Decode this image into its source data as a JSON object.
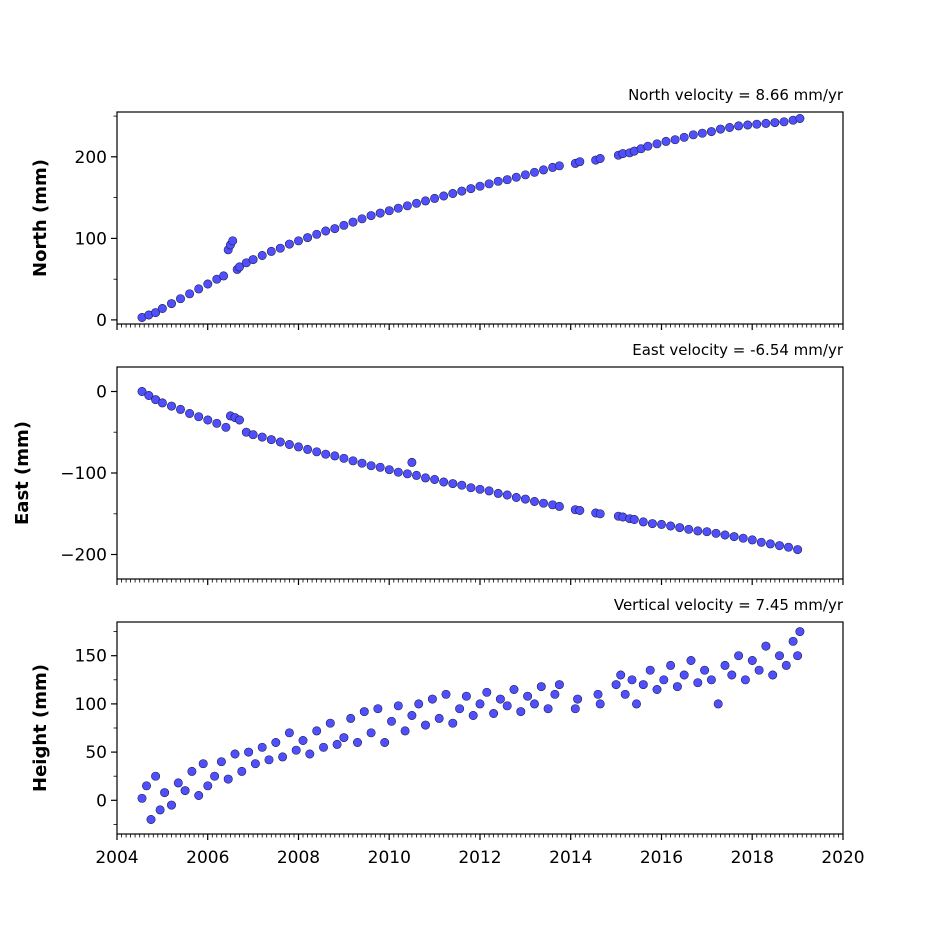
{
  "chart_data": [
    {
      "type": "scatter",
      "title": "North velocity = 8.66 mm/yr",
      "ylabel": "North (mm)",
      "xlabel": "",
      "xlim": [
        2004,
        2020
      ],
      "ylim": [
        -5,
        255
      ],
      "yticks": [
        0,
        100,
        200
      ],
      "marker_color": "#4f4fff",
      "series": [
        {
          "x": [
            2004.55,
            2004.7,
            2004.85,
            2005.0,
            2005.2,
            2005.4,
            2005.6,
            2005.8,
            2006.0,
            2006.2,
            2006.35,
            2006.45,
            2006.5,
            2006.55,
            2006.65,
            2006.7,
            2006.85,
            2007.0,
            2007.2,
            2007.4,
            2007.6,
            2007.8,
            2008.0,
            2008.2,
            2008.4,
            2008.6,
            2008.8,
            2009.0,
            2009.2,
            2009.4,
            2009.6,
            2009.8,
            2010.0,
            2010.2,
            2010.4,
            2010.6,
            2010.8,
            2011.0,
            2011.2,
            2011.4,
            2011.6,
            2011.8,
            2012.0,
            2012.2,
            2012.4,
            2012.6,
            2012.8,
            2013.0,
            2013.2,
            2013.4,
            2013.6,
            2013.75,
            2014.1,
            2014.2,
            2014.55,
            2014.65,
            2015.05,
            2015.15,
            2015.3,
            2015.4,
            2015.55,
            2015.7,
            2015.9,
            2016.1,
            2016.3,
            2016.5,
            2016.7,
            2016.9,
            2017.1,
            2017.3,
            2017.5,
            2017.7,
            2017.9,
            2018.1,
            2018.3,
            2018.5,
            2018.7,
            2018.9,
            2019.05
          ],
          "y": [
            3,
            6,
            9,
            14,
            20,
            26,
            32,
            38,
            44,
            50,
            54,
            86,
            92,
            97,
            62,
            65,
            70,
            74,
            79,
            84,
            88,
            93,
            97,
            101,
            105,
            109,
            112,
            116,
            120,
            124,
            128,
            131,
            134,
            137,
            140,
            143,
            146,
            149,
            152,
            155,
            158,
            161,
            164,
            167,
            170,
            172,
            175,
            178,
            181,
            184,
            187,
            189,
            192,
            194,
            196,
            198,
            202,
            204,
            205,
            207,
            210,
            213,
            216,
            219,
            221,
            224,
            227,
            229,
            231,
            234,
            236,
            238,
            239,
            240,
            241,
            242,
            243,
            245,
            247
          ]
        }
      ]
    },
    {
      "type": "scatter",
      "title": "East velocity = -6.54 mm/yr",
      "ylabel": "East (mm)",
      "xlabel": "",
      "xlim": [
        2004,
        2020
      ],
      "ylim": [
        -230,
        30
      ],
      "yticks": [
        0,
        -100,
        -200
      ],
      "marker_color": "#4f4fff",
      "series": [
        {
          "x": [
            2004.55,
            2004.7,
            2004.85,
            2005.0,
            2005.2,
            2005.4,
            2005.6,
            2005.8,
            2006.0,
            2006.2,
            2006.4,
            2006.5,
            2006.6,
            2006.7,
            2006.85,
            2007.0,
            2007.2,
            2007.4,
            2007.6,
            2007.8,
            2008.0,
            2008.2,
            2008.4,
            2008.6,
            2008.8,
            2009.0,
            2009.2,
            2009.4,
            2009.6,
            2009.8,
            2010.0,
            2010.2,
            2010.4,
            2010.5,
            2010.6,
            2010.8,
            2011.0,
            2011.2,
            2011.4,
            2011.6,
            2011.8,
            2012.0,
            2012.2,
            2012.4,
            2012.6,
            2012.8,
            2013.0,
            2013.2,
            2013.4,
            2013.6,
            2013.75,
            2014.1,
            2014.2,
            2014.55,
            2014.65,
            2015.05,
            2015.15,
            2015.3,
            2015.4,
            2015.6,
            2015.8,
            2016.0,
            2016.2,
            2016.4,
            2016.6,
            2016.8,
            2017.0,
            2017.2,
            2017.4,
            2017.6,
            2017.8,
            2018.0,
            2018.2,
            2018.4,
            2018.6,
            2018.8,
            2019.0
          ],
          "y": [
            0,
            -5,
            -10,
            -14,
            -18,
            -22,
            -27,
            -31,
            -35,
            -39,
            -44,
            -30,
            -32,
            -35,
            -50,
            -53,
            -56,
            -59,
            -62,
            -65,
            -68,
            -71,
            -74,
            -77,
            -79,
            -82,
            -85,
            -88,
            -91,
            -93,
            -96,
            -99,
            -101,
            -87,
            -103,
            -106,
            -108,
            -111,
            -113,
            -115,
            -118,
            -120,
            -122,
            -125,
            -127,
            -130,
            -132,
            -135,
            -137,
            -139,
            -141,
            -145,
            -146,
            -149,
            -150,
            -153,
            -154,
            -156,
            -157,
            -160,
            -162,
            -163,
            -165,
            -167,
            -169,
            -171,
            -172,
            -174,
            -176,
            -178,
            -180,
            -182,
            -185,
            -187,
            -189,
            -191,
            -194
          ]
        }
      ]
    },
    {
      "type": "scatter",
      "title": "Vertical velocity = 7.45 mm/yr",
      "ylabel": "Height (mm)",
      "xlabel": "",
      "xlim": [
        2004,
        2020
      ],
      "ylim": [
        -35,
        185
      ],
      "yticks": [
        0,
        50,
        100,
        150
      ],
      "xticks": [
        2004,
        2006,
        2008,
        2010,
        2012,
        2014,
        2016,
        2018,
        2020
      ],
      "marker_color": "#4f4fff",
      "series": [
        {
          "x": [
            2004.55,
            2004.65,
            2004.75,
            2004.85,
            2004.95,
            2005.05,
            2005.2,
            2005.35,
            2005.5,
            2005.65,
            2005.8,
            2005.9,
            2006.0,
            2006.15,
            2006.3,
            2006.45,
            2006.6,
            2006.75,
            2006.9,
            2007.05,
            2007.2,
            2007.35,
            2007.5,
            2007.65,
            2007.8,
            2007.95,
            2008.1,
            2008.25,
            2008.4,
            2008.55,
            2008.7,
            2008.85,
            2009.0,
            2009.15,
            2009.3,
            2009.45,
            2009.6,
            2009.75,
            2009.9,
            2010.05,
            2010.2,
            2010.35,
            2010.5,
            2010.65,
            2010.8,
            2010.95,
            2011.1,
            2011.25,
            2011.4,
            2011.55,
            2011.7,
            2011.85,
            2012.0,
            2012.15,
            2012.3,
            2012.45,
            2012.6,
            2012.75,
            2012.9,
            2013.05,
            2013.2,
            2013.35,
            2013.5,
            2013.65,
            2013.75,
            2014.1,
            2014.15,
            2014.6,
            2014.65,
            2015.0,
            2015.1,
            2015.2,
            2015.35,
            2015.45,
            2015.6,
            2015.75,
            2015.9,
            2016.05,
            2016.2,
            2016.35,
            2016.5,
            2016.65,
            2016.8,
            2016.95,
            2017.1,
            2017.25,
            2017.4,
            2017.55,
            2017.7,
            2017.85,
            2018.0,
            2018.15,
            2018.3,
            2018.45,
            2018.6,
            2018.75,
            2018.9,
            2019.0,
            2019.05
          ],
          "y": [
            2,
            15,
            -20,
            25,
            -10,
            8,
            -5,
            18,
            10,
            30,
            5,
            38,
            15,
            25,
            40,
            22,
            48,
            30,
            50,
            38,
            55,
            42,
            60,
            45,
            70,
            52,
            62,
            48,
            72,
            55,
            80,
            58,
            65,
            85,
            60,
            92,
            70,
            95,
            60,
            82,
            98,
            72,
            88,
            100,
            78,
            105,
            85,
            110,
            80,
            95,
            108,
            88,
            100,
            112,
            90,
            105,
            98,
            115,
            92,
            108,
            100,
            118,
            95,
            110,
            120,
            95,
            105,
            110,
            100,
            120,
            130,
            110,
            125,
            100,
            120,
            135,
            115,
            125,
            140,
            118,
            130,
            145,
            122,
            135,
            125,
            100,
            140,
            130,
            150,
            125,
            145,
            135,
            160,
            130,
            150,
            140,
            165,
            150,
            175
          ]
        }
      ]
    }
  ]
}
